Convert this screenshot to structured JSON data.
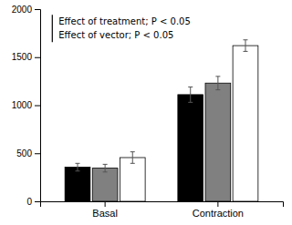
{
  "chart_data": {
    "type": "bar",
    "categories": [
      "Basal",
      "Contraction"
    ],
    "series": [
      {
        "color": "#000000",
        "values": [
          355,
          1110
        ],
        "errors": [
          40,
          80
        ]
      },
      {
        "color": "#808080",
        "values": [
          345,
          1230
        ],
        "errors": [
          40,
          70
        ]
      },
      {
        "color": "#ffffff",
        "values": [
          455,
          1620
        ],
        "errors": [
          60,
          60
        ]
      }
    ],
    "ylim": [
      0,
      2000
    ],
    "yticks": [
      0,
      500,
      1000,
      1500,
      2000
    ],
    "annotations": [
      "Effect of treatment; P < 0.05",
      "Effect of vector; P < 0.05"
    ],
    "grid": false
  }
}
